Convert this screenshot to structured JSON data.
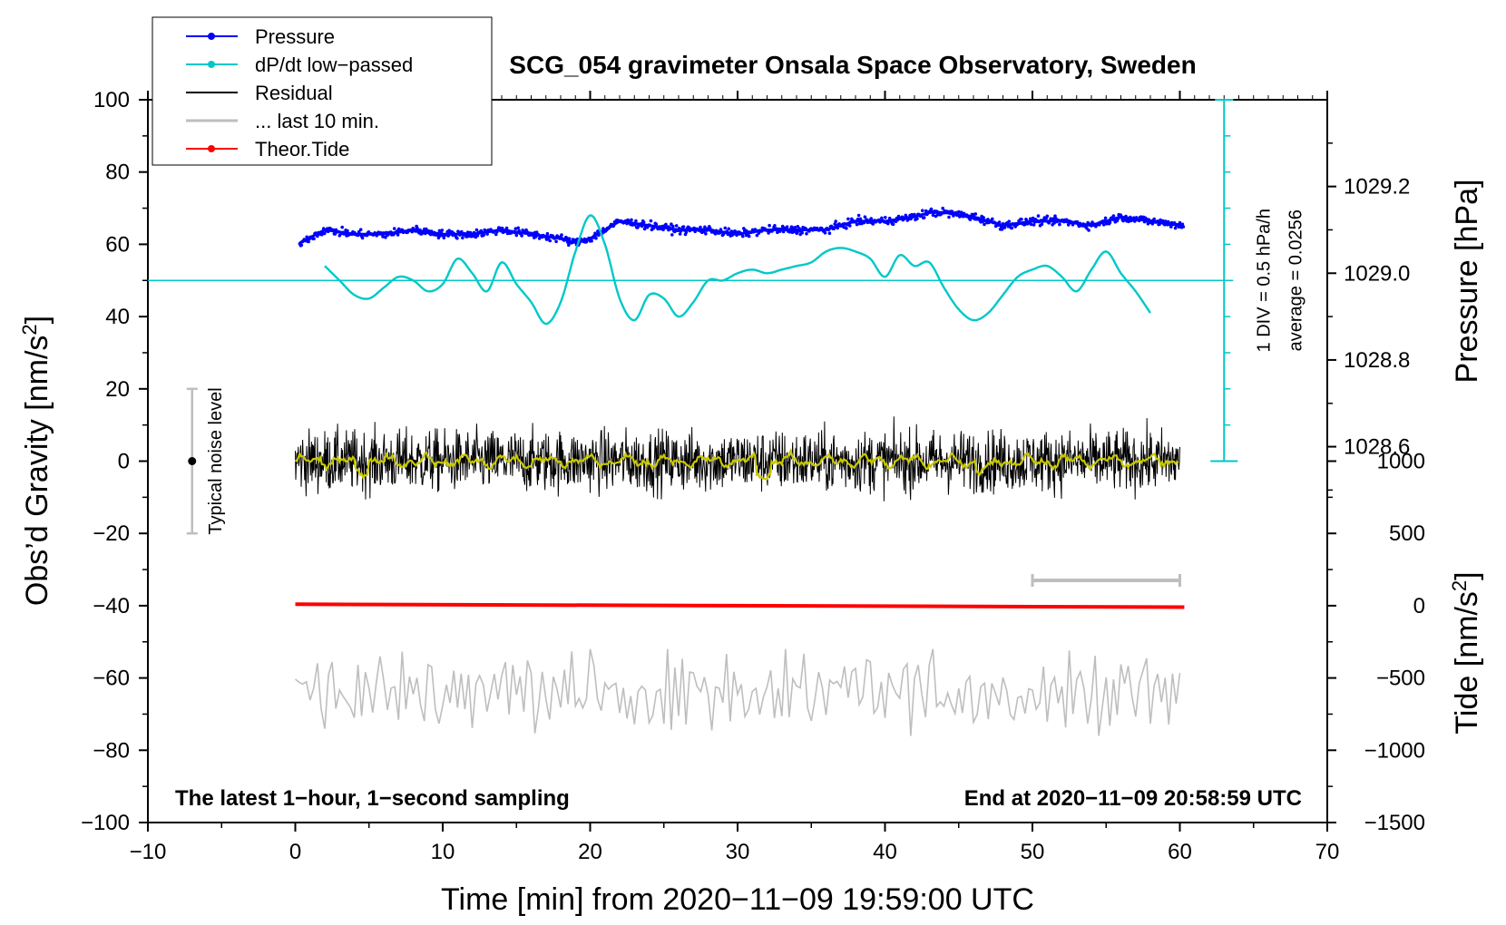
{
  "chart_data": {
    "type": "line",
    "title": "SCG_054 gravimeter Onsala Space Observatory, Sweden",
    "xlabel": "Time [min] from 2020−11−09 19:59:00 UTC",
    "ylabel_prefix": "Obs’d Gravity [nm/s",
    "ylabel_sup": "2",
    "ylabel_suffix": "]",
    "right_pressure_label": "Pressure [hPa]",
    "right_tide_prefix": "Tide [nm/s",
    "right_tide_sup": "2",
    "right_tide_suffix": "]",
    "xlim": [
      -10,
      70
    ],
    "ylim": [
      -100,
      100
    ],
    "x_ticks": [
      "−10",
      "0",
      "10",
      "20",
      "30",
      "40",
      "50",
      "60",
      "70"
    ],
    "x_tick_values": [
      -10,
      0,
      10,
      20,
      30,
      40,
      50,
      60,
      70
    ],
    "y_ticks": [
      "−100",
      "−80",
      "−60",
      "−40",
      "−20",
      "0",
      "20",
      "40",
      "60",
      "80",
      "100"
    ],
    "y_tick_values": [
      -100,
      -80,
      -60,
      -40,
      -20,
      0,
      20,
      40,
      60,
      80,
      100
    ],
    "pressure_axis": {
      "range": [
        1028.4,
        1029.4
      ],
      "ticks": [
        "1028.6",
        "1028.8",
        "1029.0",
        "1029.2"
      ],
      "tick_values": [
        1028.6,
        1028.8,
        1029.0,
        1029.2
      ]
    },
    "tide_axis": {
      "range": [
        -1500,
        1000
      ],
      "ticks": [
        "−1500",
        "−1000",
        "−500",
        "0",
        "500",
        "1000"
      ],
      "tick_values": [
        -1500,
        -1000,
        -500,
        0,
        500,
        1000
      ]
    },
    "dpdt_scale": {
      "label": "1 DIV = 0.5 hPa/h",
      "average_label": "average = 0.0256",
      "baseline_value": 50
    },
    "noise_bar": {
      "label": "Typical noise level",
      "x": -7,
      "center": 0,
      "range": [
        -20,
        20
      ]
    },
    "last10_bar": {
      "x_range": [
        50,
        60
      ],
      "y": -33
    },
    "annotations": {
      "left_bottom": "The latest 1−hour, 1−second sampling",
      "right_bottom": "End at 2020−11−09 20:58:59 UTC"
    },
    "legend": [
      {
        "label": "Pressure",
        "color": "#0000ff",
        "marker": true
      },
      {
        "label": "dP/dt low−passed",
        "color": "#00c8c8",
        "marker": true
      },
      {
        "label": "Residual",
        "color": "#000000",
        "marker": false
      },
      {
        "label": "... last 10 min.",
        "color": "#bebebe",
        "marker": false
      },
      {
        "label": "Theor.Tide",
        "color": "#ff0000",
        "marker": true
      }
    ],
    "series": [
      {
        "name": "Pressure",
        "color": "#0000ff",
        "unit": "hPa",
        "x": [
          0.3,
          2,
          4,
          6,
          8,
          10,
          12,
          14,
          16,
          18,
          19,
          20,
          22,
          24,
          26,
          28,
          30,
          32,
          34,
          36,
          38,
          40,
          42,
          43,
          44,
          46,
          48,
          50,
          52,
          54,
          56,
          58,
          60.3
        ],
        "values": [
          1029.07,
          1029.1,
          1029.09,
          1029.09,
          1029.1,
          1029.09,
          1029.09,
          1029.1,
          1029.09,
          1029.08,
          1029.07,
          1029.08,
          1029.12,
          1029.11,
          1029.1,
          1029.1,
          1029.09,
          1029.1,
          1029.1,
          1029.1,
          1029.12,
          1029.12,
          1029.13,
          1029.14,
          1029.14,
          1029.13,
          1029.11,
          1029.12,
          1029.12,
          1029.11,
          1029.13,
          1029.12,
          1029.11
        ]
      },
      {
        "name": "dP/dt low−passed",
        "color": "#00c8c8",
        "x": [
          2,
          3,
          4,
          5,
          6,
          7,
          8,
          9,
          10,
          11,
          12,
          13,
          14,
          15,
          16,
          17,
          18,
          19,
          20,
          21,
          22,
          23,
          24,
          25,
          26,
          27,
          28,
          29,
          30,
          31,
          32,
          33,
          34,
          35,
          36,
          37,
          38,
          39,
          40,
          41,
          42,
          43,
          44,
          45,
          46,
          47,
          48,
          49,
          50,
          51,
          52,
          53,
          54,
          55,
          56,
          57,
          58
        ],
        "values": [
          54,
          50,
          46,
          45,
          48,
          51,
          50,
          47,
          49,
          56,
          52,
          47,
          55,
          49,
          44,
          38,
          44,
          58,
          68,
          60,
          45,
          39,
          46,
          45,
          40,
          44,
          50,
          50,
          52,
          53,
          52,
          53,
          54,
          55,
          58,
          59,
          58,
          56,
          51,
          57,
          54,
          55,
          48,
          42,
          39,
          41,
          46,
          51,
          53,
          54,
          51,
          47,
          53,
          58,
          52,
          47,
          41
        ]
      },
      {
        "name": "Residual",
        "color": "#000000",
        "x_range": [
          0,
          60
        ],
        "envelope": [
          -18,
          15
        ]
      },
      {
        "name": "Residual smoothed",
        "color": "#c8c800",
        "x_range": [
          0,
          60
        ],
        "envelope": [
          -5,
          3
        ]
      },
      {
        "name": "... last 10 min.",
        "color": "#bebebe",
        "x_range": [
          0,
          60
        ],
        "envelope": [
          -76,
          -52
        ]
      },
      {
        "name": "Theor.Tide",
        "color": "#ff0000",
        "unit": "nm/s2",
        "x": [
          0,
          60.3
        ],
        "values": [
          10,
          -10
        ]
      }
    ]
  }
}
